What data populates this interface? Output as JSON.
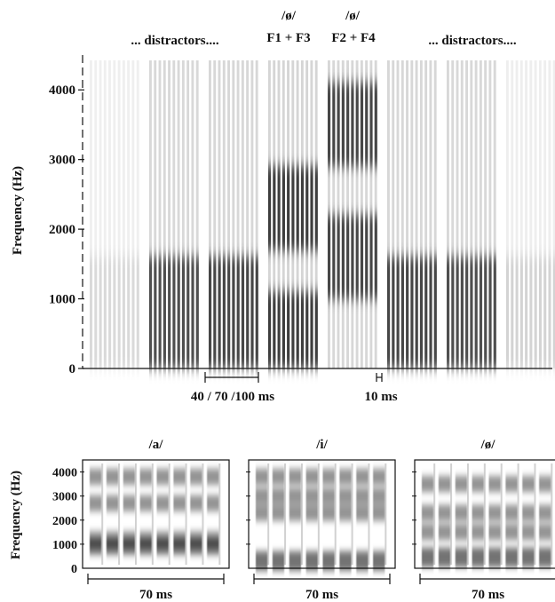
{
  "top_panel": {
    "labels": {
      "distractors_left": "... distractors....",
      "target1_symbol": "/ø/",
      "target1_formants": "F1 + F3",
      "target2_symbol": "/ø/",
      "target2_formants": "F2 + F4",
      "distractors_right": "... distractors....",
      "gap_label": "40 / 70 /100 ms",
      "burst_label": "10 ms",
      "ylabel": "Frequency (Hz)"
    },
    "yticks": [
      "0",
      "1000",
      "2000",
      "3000",
      "4000"
    ],
    "ylim": [
      0,
      4500
    ],
    "stimuli": [
      {
        "role": "distractor",
        "bands_hz": [
          1000
        ],
        "intensity": 0.12
      },
      {
        "role": "distractor",
        "bands_hz": [
          1000
        ],
        "intensity": 0.85
      },
      {
        "role": "distractor",
        "bands_hz": [
          1000
        ],
        "intensity": 0.9
      },
      {
        "role": "target",
        "bands_hz": [
          500,
          2300
        ],
        "intensity": 0.95
      },
      {
        "role": "target",
        "bands_hz": [
          1600,
          3500
        ],
        "intensity": 0.9
      },
      {
        "role": "distractor",
        "bands_hz": [
          1000
        ],
        "intensity": 0.9
      },
      {
        "role": "distractor",
        "bands_hz": [
          1000
        ],
        "intensity": 0.85
      },
      {
        "role": "distractor",
        "bands_hz": [
          1000
        ],
        "intensity": 0.15
      }
    ]
  },
  "bottom_panels": [
    {
      "title": "/a/",
      "ylabel": "Frequency (Hz)",
      "duration_label": "70 ms",
      "bands_hz": [
        900,
        1200,
        2700,
        3800
      ],
      "yticks": [
        "0",
        "1000",
        "2000",
        "3000",
        "4000"
      ]
    },
    {
      "title": "/i/",
      "ylabel": "",
      "duration_label": "70 ms",
      "bands_hz": [
        300,
        2300,
        3000,
        3800
      ],
      "yticks": []
    },
    {
      "title": "/ø/",
      "ylabel": "",
      "duration_label": "70 ms",
      "bands_hz": [
        450,
        1500,
        2300,
        3500
      ],
      "yticks": []
    }
  ]
}
